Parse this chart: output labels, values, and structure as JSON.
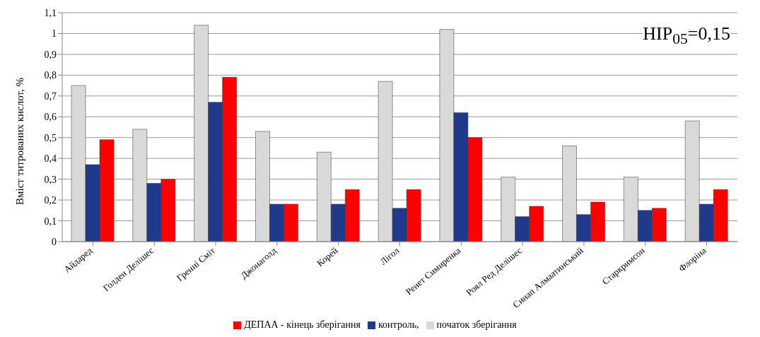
{
  "chart_data": {
    "type": "bar",
    "ylabel": "Вміст титрованих  кислот, %",
    "categories": [
      "Айдаред",
      "Голден Делішес",
      "Гренні Сміт",
      "Джонаголд",
      "Корей",
      "Лігол",
      "Ренет Симиренка",
      "Роял Ред Делішес",
      "Синап Алмаатинський",
      "Старкримсон",
      "Флоріна"
    ],
    "series": [
      {
        "name": "початок зберігання",
        "color": "#d9d9d9",
        "values": [
          0.75,
          0.54,
          1.04,
          0.53,
          0.43,
          0.77,
          1.02,
          0.31,
          0.46,
          0.31,
          0.58
        ]
      },
      {
        "name": "контроль,",
        "color": "#1f3a8a",
        "values": [
          0.37,
          0.28,
          0.67,
          0.18,
          0.18,
          0.16,
          0.62,
          0.12,
          0.13,
          0.15,
          0.18
        ]
      },
      {
        "name": "ДЕПАА - кінець зберігання",
        "color": "#ff0000",
        "values": [
          0.49,
          0.3,
          0.79,
          0.18,
          0.25,
          0.25,
          0.5,
          0.17,
          0.19,
          0.16,
          0.25
        ]
      }
    ],
    "ylim": [
      0,
      1.1
    ],
    "yticks": [
      0,
      {
        "value": 0.1,
        "label": "0,1"
      },
      {
        "value": 0.2,
        "label": "0,2"
      },
      {
        "value": 0.3,
        "label": "0,3"
      },
      {
        "value": 0.4,
        "label": "0,4"
      },
      {
        "value": 0.5,
        "label": "0,5"
      },
      {
        "value": 0.6,
        "label": "0,6"
      },
      {
        "value": 0.7,
        "label": "0,7"
      },
      {
        "value": 0.8,
        "label": "0,8"
      },
      {
        "value": 0.9,
        "label": "0,9"
      },
      1,
      {
        "value": 1.1,
        "label": "1,1"
      }
    ],
    "grid": "y",
    "legend": "bottom",
    "annotations": [
      "НІР$_{05}$=0,15"
    ]
  }
}
